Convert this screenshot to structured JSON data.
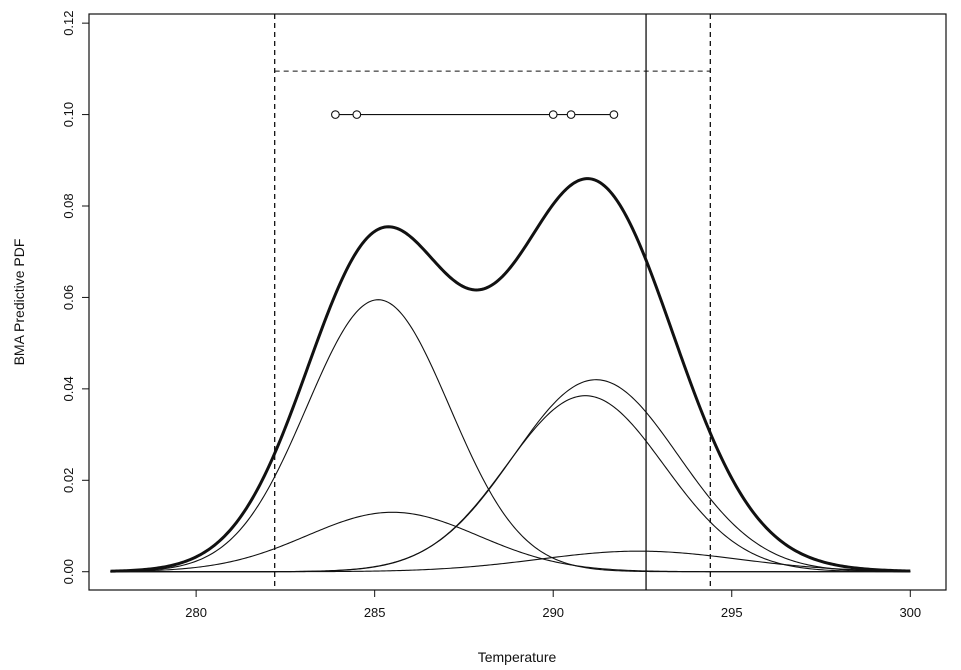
{
  "chart_data": {
    "type": "line",
    "title": "",
    "xlabel": "Temperature",
    "ylabel": "BMA Predictive PDF",
    "xlim": [
      277.0,
      301.0
    ],
    "ylim": [
      -0.004,
      0.122
    ],
    "x_ticks": [
      280,
      285,
      290,
      295,
      300
    ],
    "x_tick_labels": [
      "280",
      "285",
      "290",
      "295",
      "300"
    ],
    "y_ticks": [
      0.0,
      0.02,
      0.04,
      0.06,
      0.08,
      0.1,
      0.12
    ],
    "y_tick_labels": [
      "0.00",
      "0.02",
      "0.04",
      "0.06",
      "0.08",
      "0.10",
      "0.12"
    ],
    "x_range_plotted": [
      277.6,
      300.0
    ],
    "grid": false,
    "legend": "none",
    "colors": {
      "line": "#111111",
      "background": "#ffffff"
    },
    "components": [
      {
        "mean": 285.1,
        "sd": 2.0,
        "peak": 0.0595
      },
      {
        "mean": 285.5,
        "sd": 2.4,
        "peak": 0.013
      },
      {
        "mean": 291.2,
        "sd": 2.3,
        "peak": 0.042
      },
      {
        "mean": 290.9,
        "sd": 2.2,
        "peak": 0.0385
      },
      {
        "mean": 292.4,
        "sd": 2.8,
        "peak": 0.0045
      }
    ],
    "bma_pdf": "sum of components (thick line)",
    "ensemble_members": [
      283.9,
      284.5,
      290.0,
      290.5,
      291.7
    ],
    "ensemble_members_y": 0.1,
    "observation": 292.6,
    "interval_lower": 282.2,
    "interval_upper": 294.4,
    "interval_top_y": 0.1095
  }
}
